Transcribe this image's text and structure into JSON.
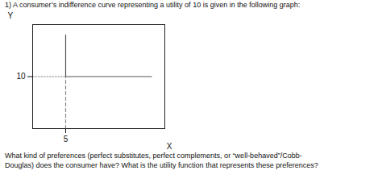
{
  "chart_data": {
    "type": "line",
    "title": "1) A consumer’s indifference curve representing a utility of 10 is given in the following graph:",
    "annotations": [
      "What kind of preferences (perfect substitutes, perfect complements, or “well-behaved”/Cobb-",
      "Douglas) does the consumer have? What is the utility function that represents these preferences?"
    ],
    "xlabel": "X",
    "ylabel": "Y",
    "xlim": [
      0,
      20
    ],
    "ylim": [
      0,
      20
    ],
    "xticks": [
      5
    ],
    "yticks": [
      10
    ],
    "grid": false,
    "series": [
      {
        "color": "#555555",
        "line_style": "solid",
        "x": [
          5,
          5,
          18
        ],
        "values": [
          18,
          10,
          10
        ]
      },
      {
        "color": "#888888",
        "line_style": "dotted",
        "x": [
          0,
          5
        ],
        "values": [
          10,
          10
        ]
      },
      {
        "color": "#888888",
        "line_style": "dashed",
        "x": [
          5,
          5
        ],
        "values": [
          0,
          10
        ]
      }
    ]
  }
}
